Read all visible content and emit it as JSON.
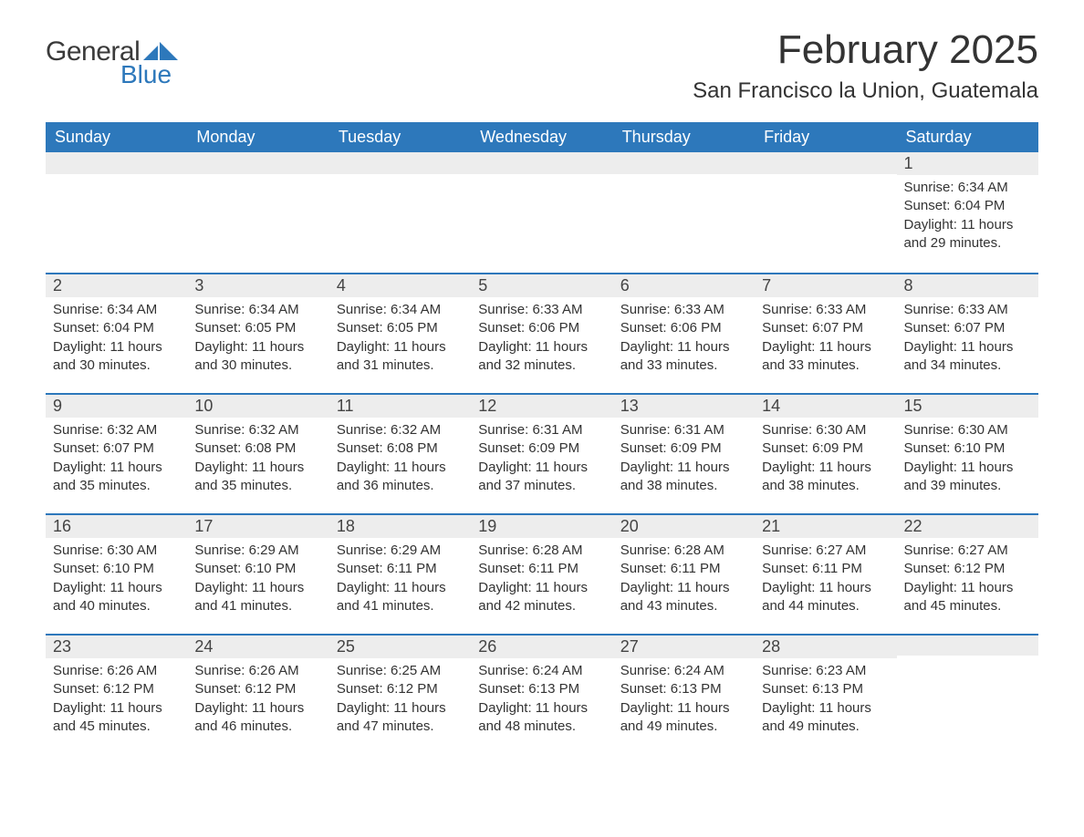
{
  "logo": {
    "text_general": "General",
    "text_blue": "Blue",
    "icon_color": "#2d78bb"
  },
  "header": {
    "month_title": "February 2025",
    "location": "San Francisco la Union, Guatemala"
  },
  "colors": {
    "header_bg": "#2d78bb",
    "header_text": "#ffffff",
    "daynum_bg": "#ededed",
    "row_border": "#2d78bb",
    "body_text": "#333333",
    "page_bg": "#ffffff"
  },
  "typography": {
    "month_title_size": 44,
    "location_size": 24,
    "weekday_size": 18,
    "daynum_size": 18,
    "body_size": 15,
    "font_family": "Arial"
  },
  "weekdays": [
    "Sunday",
    "Monday",
    "Tuesday",
    "Wednesday",
    "Thursday",
    "Friday",
    "Saturday"
  ],
  "calendar": {
    "type": "table",
    "start_weekday": "Sunday",
    "weeks": [
      [
        null,
        null,
        null,
        null,
        null,
        null,
        {
          "num": "1",
          "sunrise": "Sunrise: 6:34 AM",
          "sunset": "Sunset: 6:04 PM",
          "daylight": "Daylight: 11 hours and 29 minutes."
        }
      ],
      [
        {
          "num": "2",
          "sunrise": "Sunrise: 6:34 AM",
          "sunset": "Sunset: 6:04 PM",
          "daylight": "Daylight: 11 hours and 30 minutes."
        },
        {
          "num": "3",
          "sunrise": "Sunrise: 6:34 AM",
          "sunset": "Sunset: 6:05 PM",
          "daylight": "Daylight: 11 hours and 30 minutes."
        },
        {
          "num": "4",
          "sunrise": "Sunrise: 6:34 AM",
          "sunset": "Sunset: 6:05 PM",
          "daylight": "Daylight: 11 hours and 31 minutes."
        },
        {
          "num": "5",
          "sunrise": "Sunrise: 6:33 AM",
          "sunset": "Sunset: 6:06 PM",
          "daylight": "Daylight: 11 hours and 32 minutes."
        },
        {
          "num": "6",
          "sunrise": "Sunrise: 6:33 AM",
          "sunset": "Sunset: 6:06 PM",
          "daylight": "Daylight: 11 hours and 33 minutes."
        },
        {
          "num": "7",
          "sunrise": "Sunrise: 6:33 AM",
          "sunset": "Sunset: 6:07 PM",
          "daylight": "Daylight: 11 hours and 33 minutes."
        },
        {
          "num": "8",
          "sunrise": "Sunrise: 6:33 AM",
          "sunset": "Sunset: 6:07 PM",
          "daylight": "Daylight: 11 hours and 34 minutes."
        }
      ],
      [
        {
          "num": "9",
          "sunrise": "Sunrise: 6:32 AM",
          "sunset": "Sunset: 6:07 PM",
          "daylight": "Daylight: 11 hours and 35 minutes."
        },
        {
          "num": "10",
          "sunrise": "Sunrise: 6:32 AM",
          "sunset": "Sunset: 6:08 PM",
          "daylight": "Daylight: 11 hours and 35 minutes."
        },
        {
          "num": "11",
          "sunrise": "Sunrise: 6:32 AM",
          "sunset": "Sunset: 6:08 PM",
          "daylight": "Daylight: 11 hours and 36 minutes."
        },
        {
          "num": "12",
          "sunrise": "Sunrise: 6:31 AM",
          "sunset": "Sunset: 6:09 PM",
          "daylight": "Daylight: 11 hours and 37 minutes."
        },
        {
          "num": "13",
          "sunrise": "Sunrise: 6:31 AM",
          "sunset": "Sunset: 6:09 PM",
          "daylight": "Daylight: 11 hours and 38 minutes."
        },
        {
          "num": "14",
          "sunrise": "Sunrise: 6:30 AM",
          "sunset": "Sunset: 6:09 PM",
          "daylight": "Daylight: 11 hours and 38 minutes."
        },
        {
          "num": "15",
          "sunrise": "Sunrise: 6:30 AM",
          "sunset": "Sunset: 6:10 PM",
          "daylight": "Daylight: 11 hours and 39 minutes."
        }
      ],
      [
        {
          "num": "16",
          "sunrise": "Sunrise: 6:30 AM",
          "sunset": "Sunset: 6:10 PM",
          "daylight": "Daylight: 11 hours and 40 minutes."
        },
        {
          "num": "17",
          "sunrise": "Sunrise: 6:29 AM",
          "sunset": "Sunset: 6:10 PM",
          "daylight": "Daylight: 11 hours and 41 minutes."
        },
        {
          "num": "18",
          "sunrise": "Sunrise: 6:29 AM",
          "sunset": "Sunset: 6:11 PM",
          "daylight": "Daylight: 11 hours and 41 minutes."
        },
        {
          "num": "19",
          "sunrise": "Sunrise: 6:28 AM",
          "sunset": "Sunset: 6:11 PM",
          "daylight": "Daylight: 11 hours and 42 minutes."
        },
        {
          "num": "20",
          "sunrise": "Sunrise: 6:28 AM",
          "sunset": "Sunset: 6:11 PM",
          "daylight": "Daylight: 11 hours and 43 minutes."
        },
        {
          "num": "21",
          "sunrise": "Sunrise: 6:27 AM",
          "sunset": "Sunset: 6:11 PM",
          "daylight": "Daylight: 11 hours and 44 minutes."
        },
        {
          "num": "22",
          "sunrise": "Sunrise: 6:27 AM",
          "sunset": "Sunset: 6:12 PM",
          "daylight": "Daylight: 11 hours and 45 minutes."
        }
      ],
      [
        {
          "num": "23",
          "sunrise": "Sunrise: 6:26 AM",
          "sunset": "Sunset: 6:12 PM",
          "daylight": "Daylight: 11 hours and 45 minutes."
        },
        {
          "num": "24",
          "sunrise": "Sunrise: 6:26 AM",
          "sunset": "Sunset: 6:12 PM",
          "daylight": "Daylight: 11 hours and 46 minutes."
        },
        {
          "num": "25",
          "sunrise": "Sunrise: 6:25 AM",
          "sunset": "Sunset: 6:12 PM",
          "daylight": "Daylight: 11 hours and 47 minutes."
        },
        {
          "num": "26",
          "sunrise": "Sunrise: 6:24 AM",
          "sunset": "Sunset: 6:13 PM",
          "daylight": "Daylight: 11 hours and 48 minutes."
        },
        {
          "num": "27",
          "sunrise": "Sunrise: 6:24 AM",
          "sunset": "Sunset: 6:13 PM",
          "daylight": "Daylight: 11 hours and 49 minutes."
        },
        {
          "num": "28",
          "sunrise": "Sunrise: 6:23 AM",
          "sunset": "Sunset: 6:13 PM",
          "daylight": "Daylight: 11 hours and 49 minutes."
        },
        null
      ]
    ]
  }
}
